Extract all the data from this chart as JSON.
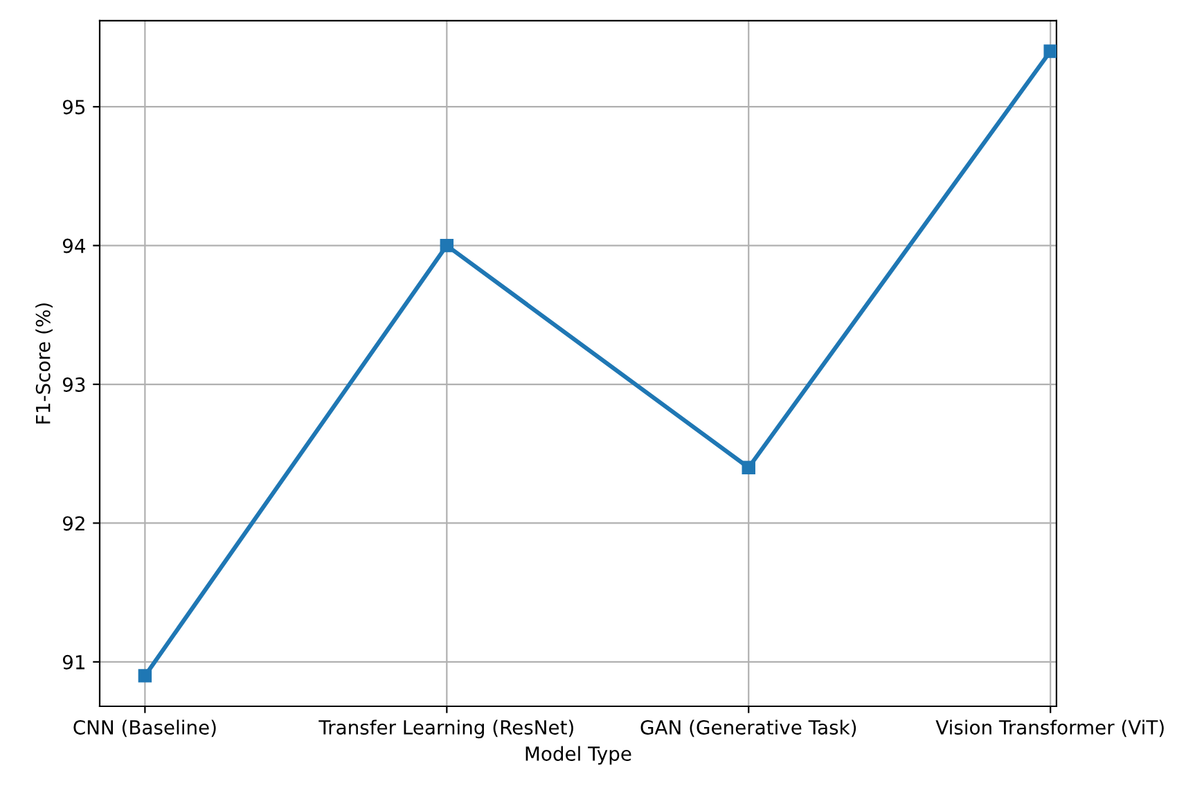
{
  "chart_data": {
    "type": "line",
    "xlabel": "Model Type",
    "ylabel": "F1-Score (%)",
    "categories": [
      "CNN (Baseline)",
      "Transfer Learning (ResNet)",
      "GAN (Generative Task)",
      "Vision Transformer (ViT)"
    ],
    "series": [
      {
        "color": "#1f77b4",
        "values": [
          90.9,
          94.0,
          92.4,
          95.4
        ]
      }
    ],
    "ylim": [
      90.68,
      95.62
    ],
    "yticks": [
      91,
      92,
      93,
      94,
      95
    ],
    "grid": true,
    "marker": "square",
    "line_style": "solid",
    "legend": false
  }
}
